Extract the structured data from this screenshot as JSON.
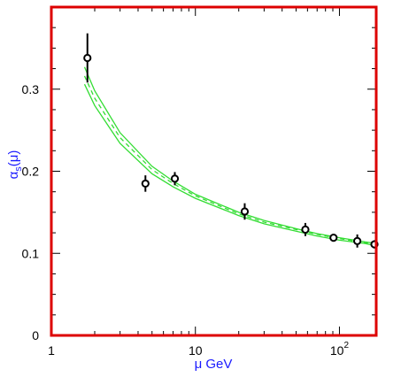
{
  "chart_data": {
    "type": "scatter",
    "title": "",
    "xlabel": "μ GeV",
    "ylabel": "α_s(μ)",
    "ylabel_main": "α",
    "ylabel_sub": "s",
    "ylabel_arg": "(μ)",
    "x_scale": "log",
    "xlim": [
      1,
      180
    ],
    "ylim": [
      0,
      0.4
    ],
    "grid": false,
    "legend": "none",
    "x_ticks": [
      {
        "value": 1,
        "label": "1"
      },
      {
        "value": 10,
        "label": "10"
      },
      {
        "value": 100,
        "label": "10",
        "exponent": "2"
      }
    ],
    "y_ticks": [
      {
        "value": 0,
        "label": "0"
      },
      {
        "value": 0.1,
        "label": "0.1"
      },
      {
        "value": 0.2,
        "label": "0.2"
      },
      {
        "value": 0.3,
        "label": "0.3"
      }
    ],
    "measurements": [
      {
        "x": 1.78,
        "y": 0.338,
        "err": 0.03
      },
      {
        "x": 4.5,
        "y": 0.185,
        "err": 0.01
      },
      {
        "x": 7.2,
        "y": 0.191,
        "err": 0.008
      },
      {
        "x": 22,
        "y": 0.151,
        "err": 0.01
      },
      {
        "x": 58,
        "y": 0.129,
        "err": 0.008
      },
      {
        "x": 91,
        "y": 0.119,
        "err": 0.004
      },
      {
        "x": 133,
        "y": 0.115,
        "err": 0.008
      },
      {
        "x": 175,
        "y": 0.111,
        "err": 0.005
      }
    ],
    "bands": [
      {
        "name": "upper",
        "style": "solid",
        "x": [
          1.7,
          2,
          3,
          5,
          7,
          10,
          20,
          30,
          50,
          70,
          100,
          150,
          180
        ],
        "y": [
          0.327,
          0.298,
          0.247,
          0.206,
          0.188,
          0.172,
          0.15,
          0.14,
          0.13,
          0.124,
          0.119,
          0.114,
          0.112
        ]
      },
      {
        "name": "central",
        "style": "dashed",
        "x": [
          1.7,
          2,
          3,
          5,
          7,
          10,
          20,
          30,
          50,
          70,
          100,
          150,
          180
        ],
        "y": [
          0.316,
          0.289,
          0.241,
          0.202,
          0.185,
          0.17,
          0.148,
          0.138,
          0.129,
          0.123,
          0.118,
          0.113,
          0.111
        ]
      },
      {
        "name": "lower",
        "style": "solid",
        "x": [
          1.7,
          2,
          3,
          5,
          7,
          10,
          20,
          30,
          50,
          70,
          100,
          150,
          180
        ],
        "y": [
          0.306,
          0.28,
          0.234,
          0.197,
          0.181,
          0.167,
          0.146,
          0.136,
          0.127,
          0.121,
          0.116,
          0.112,
          0.109
        ]
      }
    ],
    "colors": {
      "frame": "#dd0000",
      "curve": "#33dd33",
      "marker": "#000000",
      "label": "#1a1aff"
    }
  }
}
